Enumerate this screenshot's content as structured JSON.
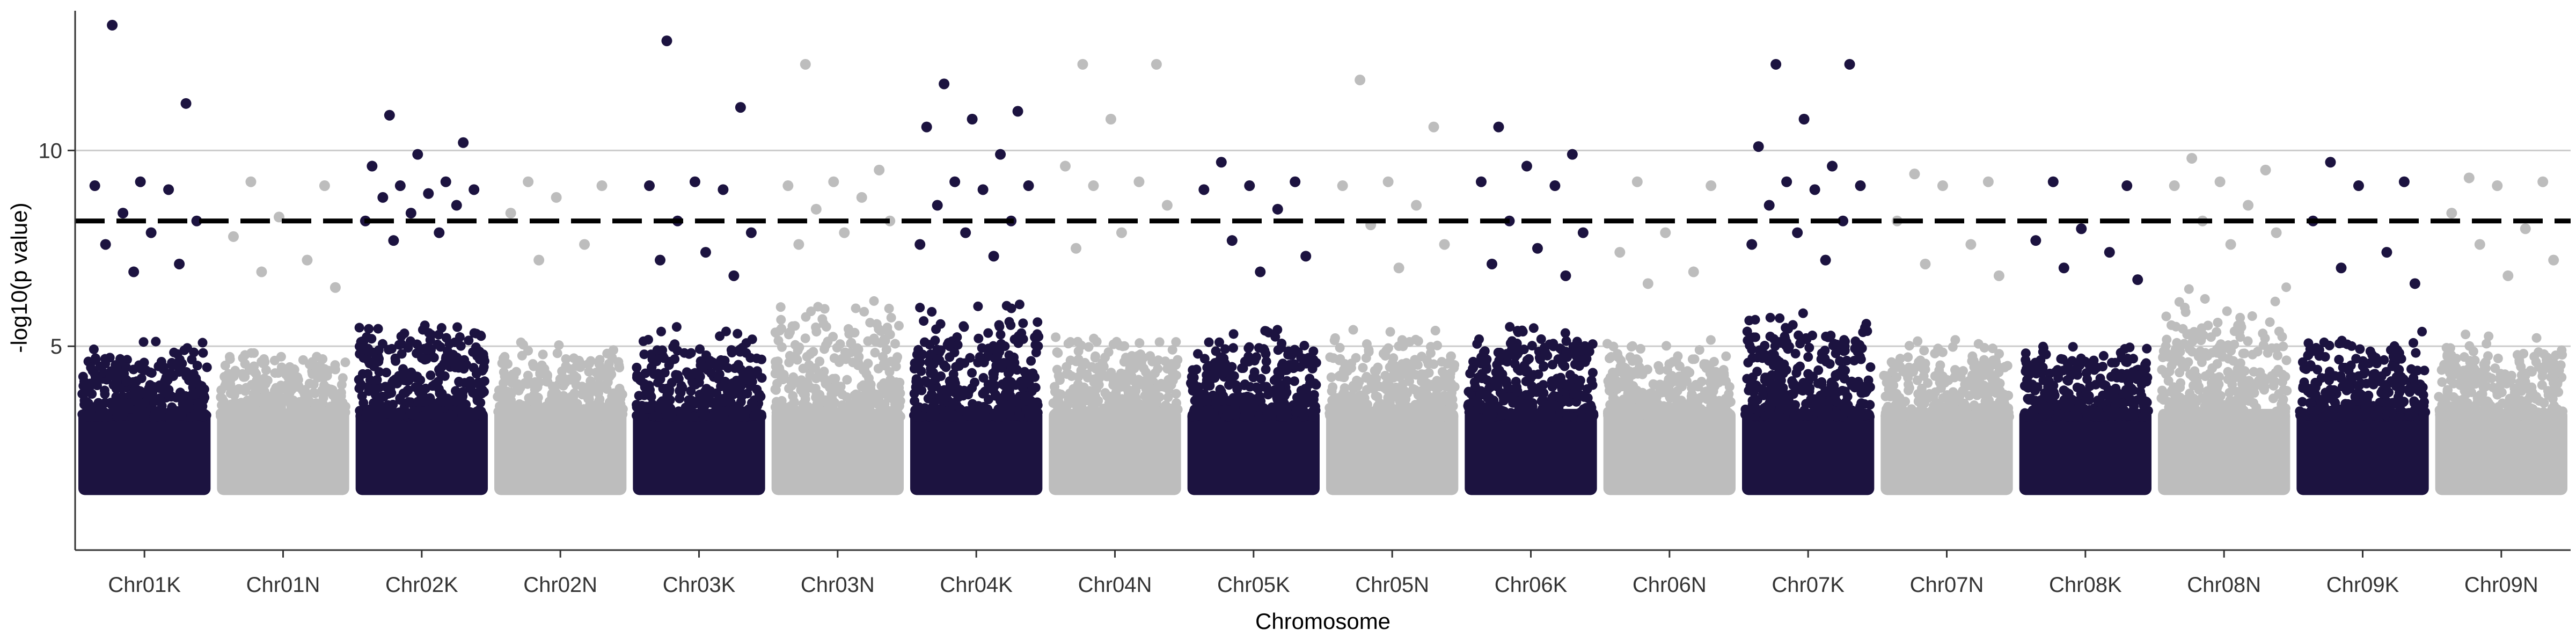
{
  "chart_data": {
    "type": "scatter",
    "subtype": "manhattan",
    "xlabel": "Chromosome",
    "ylabel": "-log10(p value)",
    "categories": [
      "Chr01K",
      "Chr01N",
      "Chr02K",
      "Chr02N",
      "Chr03K",
      "Chr03N",
      "Chr04K",
      "Chr04N",
      "Chr05K",
      "Chr05N",
      "Chr06K",
      "Chr06N",
      "Chr07K",
      "Chr07N",
      "Chr08K",
      "Chr08N",
      "Chr09K",
      "Chr09N"
    ],
    "y_ticks": [
      5,
      10
    ],
    "ylim": [
      0,
      13.5
    ],
    "grid_y": true,
    "threshold": 8.2,
    "colors": {
      "odd": "#1c1340",
      "even": "#bdbdbd",
      "threshold": "#000000",
      "grid": "#cccccc",
      "axis": "#333333"
    },
    "chromosomes": [
      {
        "name": "Chr01K",
        "body_max": 5.3,
        "top_points": [
          13.2,
          11.2,
          9.2,
          9.1,
          9.0,
          8.4,
          8.2,
          7.9,
          7.6,
          7.1,
          6.9
        ]
      },
      {
        "name": "Chr01N",
        "body_max": 5.0,
        "top_points": [
          9.2,
          9.1,
          8.3,
          7.8,
          7.2,
          6.9,
          6.5
        ]
      },
      {
        "name": "Chr02K",
        "body_max": 5.8,
        "top_points": [
          10.9,
          10.2,
          9.9,
          9.6,
          9.2,
          9.1,
          9.0,
          8.9,
          8.8,
          8.6,
          8.4,
          8.2,
          7.9,
          7.7
        ]
      },
      {
        "name": "Chr02N",
        "body_max": 5.2,
        "top_points": [
          9.2,
          9.1,
          8.8,
          8.4,
          7.6,
          7.2
        ]
      },
      {
        "name": "Chr03K",
        "body_max": 5.6,
        "top_points": [
          12.8,
          11.1,
          9.2,
          9.1,
          9.0,
          8.2,
          7.9,
          7.4,
          7.2,
          6.8
        ]
      },
      {
        "name": "Chr03N",
        "body_max": 6.5,
        "top_points": [
          12.2,
          9.5,
          9.2,
          9.1,
          8.8,
          8.5,
          8.2,
          7.9,
          7.6
        ]
      },
      {
        "name": "Chr04K",
        "body_max": 6.3,
        "top_points": [
          11.7,
          11.0,
          10.8,
          10.6,
          9.9,
          9.2,
          9.1,
          9.0,
          8.6,
          8.2,
          7.9,
          7.6,
          7.3
        ]
      },
      {
        "name": "Chr04N",
        "body_max": 5.4,
        "top_points": [
          12.2,
          12.2,
          10.8,
          9.6,
          9.2,
          9.1,
          8.6,
          7.9,
          7.5
        ]
      },
      {
        "name": "Chr05K",
        "body_max": 5.5,
        "top_points": [
          9.7,
          9.2,
          9.1,
          9.0,
          8.5,
          7.7,
          7.3,
          6.9
        ]
      },
      {
        "name": "Chr05N",
        "body_max": 5.6,
        "top_points": [
          11.8,
          10.6,
          9.2,
          9.1,
          8.6,
          8.1,
          7.6,
          7.0
        ]
      },
      {
        "name": "Chr06K",
        "body_max": 5.9,
        "top_points": [
          10.6,
          9.9,
          9.6,
          9.2,
          9.1,
          8.2,
          7.9,
          7.5,
          7.1,
          6.8
        ]
      },
      {
        "name": "Chr06N",
        "body_max": 5.2,
        "top_points": [
          9.2,
          9.1,
          7.9,
          7.4,
          6.9,
          6.6
        ]
      },
      {
        "name": "Chr07K",
        "body_max": 6.0,
        "top_points": [
          12.2,
          12.2,
          10.8,
          10.1,
          9.6,
          9.2,
          9.1,
          9.0,
          8.6,
          8.2,
          7.9,
          7.6,
          7.2
        ]
      },
      {
        "name": "Chr07N",
        "body_max": 5.3,
        "top_points": [
          9.4,
          9.2,
          9.1,
          8.2,
          7.6,
          7.1,
          6.8
        ]
      },
      {
        "name": "Chr08K",
        "body_max": 5.2,
        "top_points": [
          9.2,
          9.1,
          8.0,
          7.7,
          7.4,
          7.0,
          6.7
        ]
      },
      {
        "name": "Chr08N",
        "body_max": 6.6,
        "top_points": [
          9.8,
          9.5,
          9.2,
          9.1,
          8.6,
          8.2,
          7.9,
          7.6
        ]
      },
      {
        "name": "Chr09K",
        "body_max": 5.4,
        "top_points": [
          9.7,
          9.2,
          9.1,
          8.2,
          7.4,
          7.0,
          6.6
        ]
      },
      {
        "name": "Chr09N",
        "body_max": 5.4,
        "top_points": [
          9.3,
          9.2,
          9.1,
          8.4,
          8.0,
          7.6,
          7.2,
          6.8
        ]
      }
    ]
  }
}
